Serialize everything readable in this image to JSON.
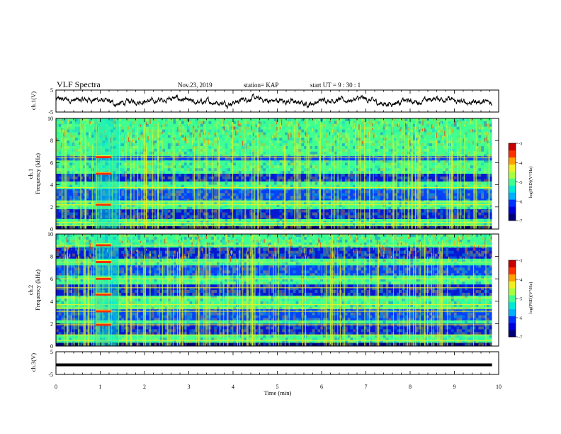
{
  "header": {
    "title": "VLF Spectra",
    "date": "Nov.23, 2019",
    "station": "station= KAP",
    "start_ut": "start UT =  9 : 30 : 1"
  },
  "chart_data": [
    {
      "type": "line",
      "panel": "ch1_waveform",
      "ylabel": "ch.1(V)",
      "ylim": [
        -5,
        5
      ],
      "yticks": [
        "5",
        "-5"
      ],
      "xlim": [
        0,
        10
      ],
      "color": "#000000",
      "description_values": {
        "mean": 0,
        "amplitude_approx": 2
      }
    },
    {
      "type": "heatmap",
      "panel": "ch1_spectrogram",
      "ylabel": "ch.1\nFrequency (kHz)",
      "ylabel_line1": "ch.1",
      "ylabel_line2": "Frequency (kHz)",
      "ylim": [
        0,
        10
      ],
      "yticks": [
        "0",
        "2",
        "4",
        "6",
        "8",
        "10"
      ],
      "xlim": [
        0,
        10
      ],
      "colorbar": {
        "label": "log(PSD)(V²/Hz)",
        "range": [
          -7,
          -3
        ],
        "ticks": [
          "-3",
          "-4",
          "-5",
          "-6",
          "-7"
        ]
      },
      "lines_khz": [
        0.3,
        0.6,
        2.2,
        2.45,
        3.75,
        6.5
      ],
      "blocks_khz": [
        [
          0.9,
          1.8
        ],
        [
          2.6,
          3.6
        ],
        [
          4.3,
          5.0
        ],
        [
          6.2,
          6.6
        ]
      ],
      "burst": {
        "t_start": 0.87,
        "t_end": 1.42,
        "lines_khz": [
          2.2,
          5.0,
          6.5
        ]
      }
    },
    {
      "type": "heatmap",
      "panel": "ch2_spectrogram",
      "ylabel_line1": "ch.2",
      "ylabel_line2": "Frequency (kHz)",
      "ylim": [
        0,
        10
      ],
      "yticks": [
        "0",
        "2",
        "4",
        "6",
        "8",
        "10"
      ],
      "xlim": [
        0,
        10
      ],
      "colorbar": {
        "label": "log(PSD)(V²/Hz)",
        "range": [
          -7,
          -3
        ],
        "ticks": [
          "-3",
          "-4",
          "-5",
          "-6",
          "-7"
        ]
      },
      "lines_khz": [
        0.5,
        1.0,
        1.9,
        3.1,
        3.4,
        3.7,
        4.3,
        5.2,
        6.0,
        7.5,
        9.0
      ],
      "blocks_khz": [
        [
          1.0,
          2.0
        ],
        [
          2.3,
          3.3
        ],
        [
          4.5,
          5.5
        ],
        [
          6.3,
          7.2
        ],
        [
          7.8,
          8.8
        ]
      ],
      "burst": {
        "t_start": 0.87,
        "t_end": 1.42,
        "lines_khz": [
          1.9,
          3.1,
          4.6,
          6.0,
          7.5,
          9.0
        ]
      }
    },
    {
      "type": "line",
      "panel": "ch3_waveform",
      "ylabel": "ch.3(V)",
      "ylim": [
        -5,
        5
      ],
      "yticks": [
        "5",
        "-5"
      ],
      "xlim": [
        0,
        10
      ],
      "x": [
        0,
        9.85
      ],
      "y": [
        -0.8,
        -0.8
      ]
    }
  ],
  "xaxis": {
    "label": "Time  (min)",
    "range": [
      0,
      10
    ],
    "ticks": [
      "0",
      "1",
      "2",
      "3",
      "4",
      "5",
      "6",
      "7",
      "8",
      "9",
      "10"
    ]
  },
  "colormap": [
    "#00007a",
    "#0000d8",
    "#0030ff",
    "#00b0ff",
    "#00e8d8",
    "#40ff90",
    "#a8ff40",
    "#f0f020",
    "#ffa000",
    "#ff3000",
    "#c80000"
  ]
}
